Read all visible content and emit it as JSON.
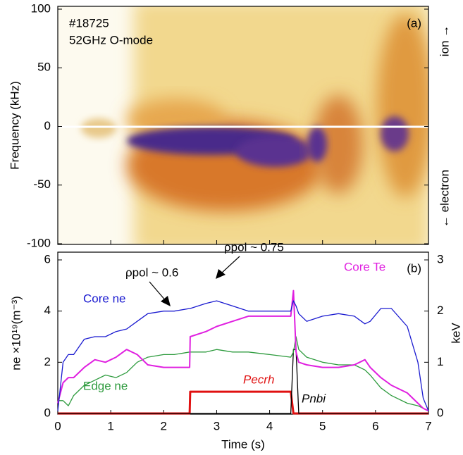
{
  "chart_data": [
    {
      "type": "spectrogram",
      "shot": "#18725",
      "mode": "52GHz O-mode",
      "panel_label": "(a)",
      "ylabel": "Frequency (kHz)",
      "ylim": [
        -100,
        100
      ],
      "yticks": [
        -100,
        -50,
        0,
        50,
        100
      ],
      "right_top": "ion →",
      "right_bottom": "← electron"
    },
    {
      "type": "line",
      "panel_label": "(b)",
      "xlabel": "Time (s)",
      "ylabel": "ne ×10¹⁹(m⁻³)",
      "y2label": "keV",
      "xlim": [
        0,
        7
      ],
      "xticks": [
        0,
        1,
        2,
        3,
        4,
        5,
        6,
        7
      ],
      "ylim": [
        0,
        6
      ],
      "yticks": [
        0,
        2,
        4,
        6
      ],
      "y2lim": [
        0,
        3
      ],
      "y2ticks": [
        0,
        1,
        2,
        3
      ],
      "x": [
        0,
        0.1,
        0.2,
        0.3,
        0.5,
        0.7,
        0.9,
        1.1,
        1.3,
        1.5,
        1.7,
        2.0,
        2.2,
        2.49,
        2.5,
        2.8,
        3.0,
        3.3,
        3.6,
        4.0,
        4.4,
        4.45,
        4.5,
        4.55,
        4.7,
        5.0,
        5.3,
        5.6,
        5.8,
        5.9,
        6.1,
        6.3,
        6.6,
        6.8,
        6.9,
        7.0
      ],
      "series": [
        {
          "name": "Core ne",
          "color": "#1a1ad0",
          "values": [
            0.1,
            2.0,
            2.3,
            2.3,
            2.9,
            3.0,
            3.0,
            3.2,
            3.3,
            3.6,
            3.9,
            4.0,
            4.0,
            4.1,
            4.1,
            4.3,
            4.4,
            4.2,
            4.0,
            4.0,
            4.0,
            4.4,
            4.2,
            3.9,
            3.6,
            3.8,
            3.9,
            3.8,
            3.5,
            3.6,
            4.1,
            4.1,
            3.4,
            2.0,
            0.6,
            0.1
          ]
        },
        {
          "name": "Edge ne",
          "color": "#2e9b3e",
          "values": [
            0.5,
            0.5,
            0.3,
            0.7,
            1.1,
            1.3,
            1.5,
            1.4,
            1.6,
            2.0,
            2.2,
            2.3,
            2.3,
            2.4,
            2.4,
            2.4,
            2.5,
            2.4,
            2.4,
            2.3,
            2.2,
            2.4,
            3.0,
            2.5,
            2.2,
            2.0,
            1.9,
            1.9,
            1.7,
            1.5,
            1.0,
            0.7,
            0.4,
            0.3,
            0.2,
            0.1
          ]
        },
        {
          "name": "Core Te",
          "color": "#e020e0",
          "axis": "y2",
          "values": [
            0.2,
            0.6,
            0.7,
            0.7,
            0.9,
            1.05,
            1.0,
            1.1,
            1.25,
            1.15,
            0.95,
            0.9,
            0.9,
            0.9,
            1.5,
            1.6,
            1.7,
            1.8,
            1.9,
            1.9,
            1.9,
            2.4,
            1.2,
            1.0,
            0.95,
            0.9,
            0.9,
            0.95,
            1.05,
            0.9,
            0.7,
            0.55,
            0.4,
            0.2,
            0.1,
            0.05
          ]
        },
        {
          "name": "Pecrh",
          "color": "#e01010",
          "values": [
            0,
            0,
            0,
            0,
            0,
            0,
            0,
            0,
            0,
            0,
            0,
            0,
            0,
            0,
            0.85,
            0.85,
            0.85,
            0.85,
            0.85,
            0.85,
            0.85,
            0,
            0,
            0,
            0,
            0,
            0,
            0,
            0,
            0,
            0,
            0,
            0,
            0,
            0,
            0
          ]
        },
        {
          "name": "Pnbi",
          "color": "#000000",
          "values": [
            0,
            0,
            0,
            0,
            0,
            0,
            0,
            0,
            0,
            0,
            0,
            0,
            0,
            0,
            0,
            0,
            0,
            0,
            0,
            0,
            0,
            2.5,
            2.5,
            0,
            0,
            0,
            0,
            0,
            0,
            0,
            0,
            0,
            0,
            0,
            0,
            0
          ]
        }
      ],
      "annotations": [
        "ρpol ~ 0.6",
        "ρpol ~ 0.75"
      ]
    }
  ]
}
